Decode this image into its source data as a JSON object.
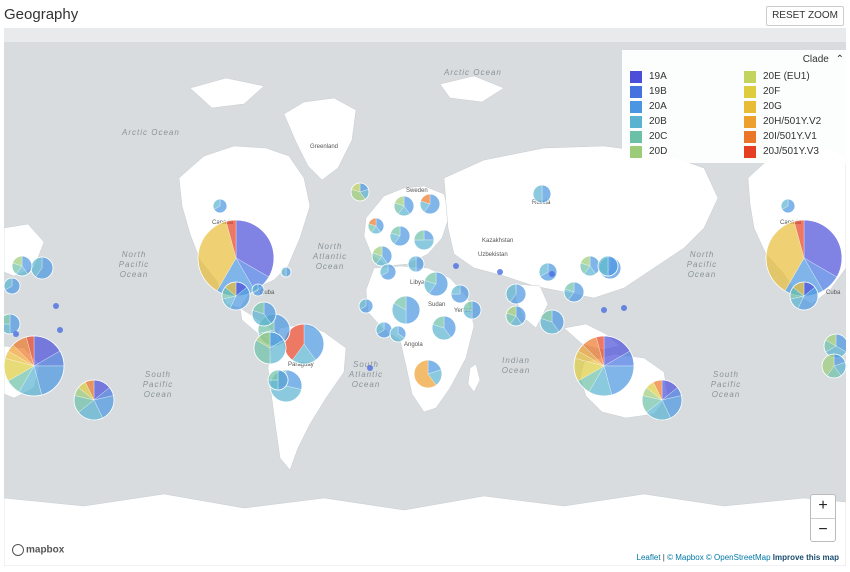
{
  "header": {
    "title": "Geography",
    "reset_label": "RESET ZOOM"
  },
  "legend": {
    "toggle_label": "Clade",
    "toggle_icon": "chevron-up-icon",
    "items": [
      {
        "label": "19A",
        "color": "#4a4ed8"
      },
      {
        "label": "19B",
        "color": "#4473e0"
      },
      {
        "label": "20A",
        "color": "#4a96e0"
      },
      {
        "label": "20B",
        "color": "#58b2d0"
      },
      {
        "label": "20C",
        "color": "#6cc0a8"
      },
      {
        "label": "20D",
        "color": "#9ccc78"
      },
      {
        "label": "20E (EU1)",
        "color": "#c2d45e"
      },
      {
        "label": "20F",
        "color": "#ddcc3e"
      },
      {
        "label": "20G",
        "color": "#e8bc36"
      },
      {
        "label": "20H/501Y.V2",
        "color": "#eea02e"
      },
      {
        "label": "20I/501Y.V1",
        "color": "#ec7628"
      },
      {
        "label": "20J/501Y.V3",
        "color": "#e63e22"
      }
    ]
  },
  "map": {
    "ocean_labels": [
      {
        "text": "Arctic Ocean"
      },
      {
        "text": "Arctic Ocean"
      },
      {
        "text": "North Atlantic Ocean"
      },
      {
        "text": "North Pacific Ocean"
      },
      {
        "text": "North Pacific Ocean"
      },
      {
        "text": "South Atlantic Ocean"
      },
      {
        "text": "Indian Ocean"
      },
      {
        "text": "South Pacific Ocean"
      },
      {
        "text": "South Pacific Ocean"
      }
    ],
    "place_labels": [
      "Greenland",
      "Canada",
      "Canada",
      "Russia",
      "Sweden",
      "Kazakhstan",
      "Uzbekistan",
      "Libya",
      "Sudan",
      "Angola",
      "Paraguay",
      "Yemen",
      "Cuba",
      "Cuba"
    ]
  },
  "zoom": {
    "in_label": "+",
    "out_label": "−"
  },
  "attribution": {
    "mapbox_logo": "mapbox",
    "leaflet": "Leaflet",
    "mapbox": "© Mapbox",
    "osm": "© OpenStreetMap",
    "improve": "Improve this map"
  }
}
